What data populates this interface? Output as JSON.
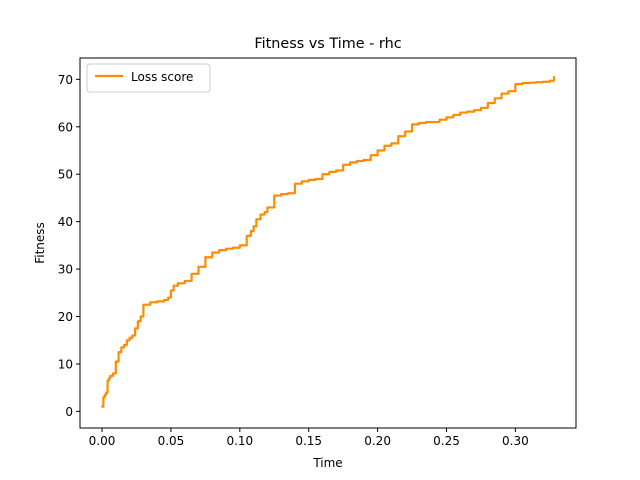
{
  "chart_data": {
    "type": "line",
    "title": "Fitness vs Time - rhc",
    "xlabel": "Time",
    "ylabel": "Fitness",
    "xlim": [
      -0.016,
      0.344
    ],
    "ylim": [
      -3.5,
      74.5
    ],
    "xticks": [
      0.0,
      0.05,
      0.1,
      0.15,
      0.2,
      0.25,
      0.3
    ],
    "xtick_labels": [
      "0.00",
      "0.05",
      "0.10",
      "0.15",
      "0.20",
      "0.25",
      "0.30"
    ],
    "yticks": [
      0,
      10,
      20,
      30,
      40,
      50,
      60,
      70
    ],
    "ytick_labels": [
      "0",
      "10",
      "20",
      "30",
      "40",
      "50",
      "60",
      "70"
    ],
    "grid": false,
    "legend_position": "upper-left",
    "series": [
      {
        "name": "Loss score",
        "color": "#ff8c00",
        "x": [
          0.0,
          0.001,
          0.002,
          0.003,
          0.004,
          0.005,
          0.006,
          0.008,
          0.01,
          0.012,
          0.014,
          0.016,
          0.018,
          0.02,
          0.022,
          0.024,
          0.026,
          0.028,
          0.03,
          0.035,
          0.04,
          0.045,
          0.048,
          0.05,
          0.052,
          0.055,
          0.06,
          0.065,
          0.07,
          0.075,
          0.08,
          0.085,
          0.09,
          0.095,
          0.1,
          0.105,
          0.108,
          0.11,
          0.112,
          0.115,
          0.118,
          0.12,
          0.125,
          0.13,
          0.135,
          0.14,
          0.145,
          0.15,
          0.155,
          0.16,
          0.165,
          0.17,
          0.175,
          0.18,
          0.185,
          0.19,
          0.195,
          0.2,
          0.205,
          0.21,
          0.215,
          0.22,
          0.225,
          0.23,
          0.235,
          0.24,
          0.245,
          0.25,
          0.255,
          0.26,
          0.265,
          0.27,
          0.275,
          0.28,
          0.285,
          0.29,
          0.295,
          0.3,
          0.305,
          0.31,
          0.315,
          0.32,
          0.325,
          0.328
        ],
        "y": [
          1.0,
          3.0,
          3.5,
          4.0,
          6.5,
          7.0,
          7.5,
          8.0,
          10.5,
          12.5,
          13.5,
          14.0,
          15.0,
          15.5,
          16.0,
          17.5,
          19.0,
          20.0,
          22.5,
          23.0,
          23.2,
          23.5,
          24.0,
          25.5,
          26.5,
          27.0,
          27.5,
          29.0,
          30.5,
          32.5,
          33.5,
          34.0,
          34.3,
          34.5,
          35.0,
          37.0,
          38.0,
          39.0,
          40.5,
          41.5,
          42.0,
          43.0,
          45.5,
          45.8,
          46.0,
          48.0,
          48.5,
          48.8,
          49.0,
          50.0,
          50.5,
          50.8,
          52.0,
          52.5,
          52.8,
          53.0,
          54.0,
          55.0,
          56.0,
          56.5,
          58.0,
          59.0,
          60.5,
          60.8,
          61.0,
          61.0,
          61.5,
          62.0,
          62.5,
          63.0,
          63.2,
          63.5,
          64.0,
          65.0,
          66.0,
          67.0,
          67.5,
          69.0,
          69.2,
          69.3,
          69.4,
          69.5,
          69.7,
          70.5
        ]
      }
    ]
  }
}
